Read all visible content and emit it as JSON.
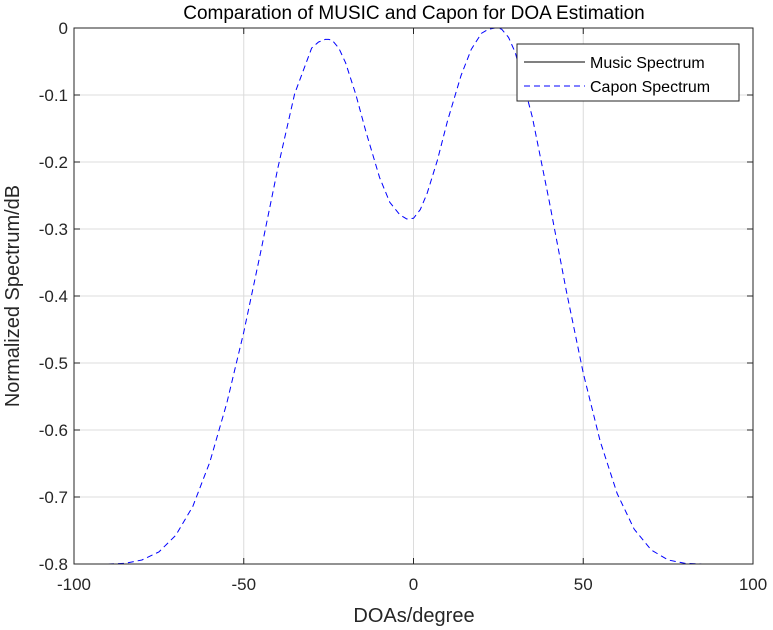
{
  "chart_data": {
    "type": "line",
    "title": "Comparation of MUSIC and Capon for DOA Estimation",
    "xlabel": "DOAs/degree",
    "ylabel": "Normalized Spectrum/dB",
    "xlim": [
      -100,
      100
    ],
    "ylim": [
      -0.8,
      0
    ],
    "xticks": [
      -100,
      -50,
      0,
      50,
      100
    ],
    "yticks": [
      0,
      -0.1,
      -0.2,
      -0.3,
      -0.4,
      -0.5,
      -0.6,
      -0.7,
      -0.8
    ],
    "xtick_labels": [
      "-100",
      "-50",
      "0",
      "50",
      "100"
    ],
    "ytick_labels": [
      "0",
      "-0.1",
      "-0.2",
      "-0.3",
      "-0.4",
      "-0.5",
      "-0.6",
      "-0.7",
      "-0.8"
    ],
    "grid": true,
    "legend_position": "top-right",
    "series": [
      {
        "name": "Music Spectrum",
        "color": "#000000",
        "style": "solid",
        "x": [
          -30,
          -28,
          -26,
          -24,
          -22,
          -20,
          -18,
          -16,
          -14,
          -12,
          -10,
          -8,
          -6,
          -4,
          -2,
          0,
          2,
          4,
          6,
          8,
          10,
          12,
          14,
          16,
          18,
          20,
          22,
          24,
          26,
          28,
          30
        ],
        "y": [
          -0.8,
          -0.8,
          -0.8,
          -0.8,
          -0.8,
          -0.8,
          -0.8,
          -0.8,
          -0.8,
          -0.8,
          -0.8,
          -0.8,
          -0.8,
          -0.8,
          -0.8,
          -0.8,
          -0.8,
          -0.8,
          -0.8,
          -0.8,
          -0.8,
          -0.8,
          -0.8,
          -0.8,
          -0.8,
          -0.8,
          -0.8,
          -0.8,
          -0.8,
          -0.8,
          -0.8
        ]
      },
      {
        "name": "Capon Spectrum",
        "color": "#0000ff",
        "style": "dashed",
        "x": [
          -90,
          -85,
          -80,
          -75,
          -70,
          -65,
          -60,
          -55,
          -50,
          -45,
          -40,
          -35,
          -30,
          -28,
          -26,
          -25,
          -24,
          -22,
          -20,
          -17,
          -14,
          -10,
          -7,
          -4,
          -2,
          0,
          2,
          4,
          7,
          10,
          14,
          17,
          20,
          22,
          24,
          25,
          26,
          28,
          30,
          35,
          40,
          45,
          50,
          55,
          60,
          65,
          70,
          75,
          80,
          85,
          90
        ],
        "y": [
          -0.8,
          -0.799,
          -0.794,
          -0.782,
          -0.757,
          -0.714,
          -0.648,
          -0.56,
          -0.454,
          -0.334,
          -0.21,
          -0.098,
          -0.03,
          -0.021,
          -0.017,
          -0.017,
          -0.018,
          -0.03,
          -0.052,
          -0.099,
          -0.155,
          -0.223,
          -0.26,
          -0.279,
          -0.285,
          -0.284,
          -0.271,
          -0.247,
          -0.198,
          -0.139,
          -0.071,
          -0.032,
          -0.008,
          -0.002,
          0,
          0,
          -0.002,
          -0.014,
          -0.037,
          -0.133,
          -0.259,
          -0.392,
          -0.515,
          -0.617,
          -0.695,
          -0.748,
          -0.779,
          -0.794,
          -0.799,
          -0.8,
          -0.8
        ]
      }
    ]
  }
}
